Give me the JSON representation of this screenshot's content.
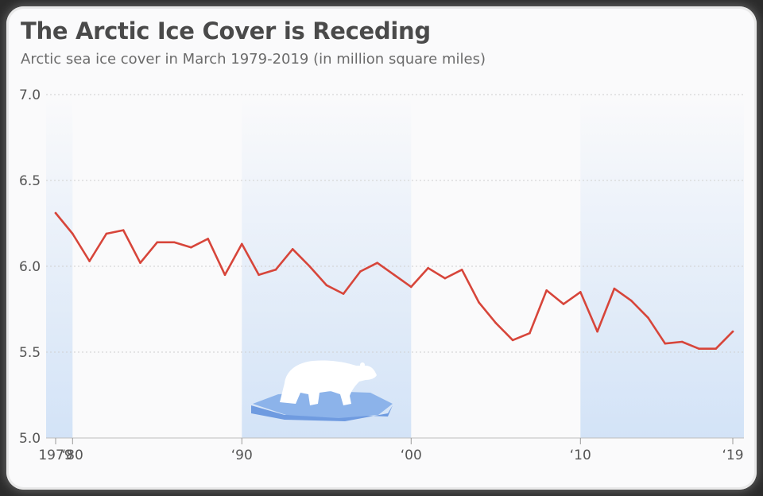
{
  "header": {
    "title": "The Arctic Ice Cover is Receding",
    "subtitle": "Arctic sea ice cover in March 1979-2019 (in million square miles)"
  },
  "colors": {
    "line": "#d7453a",
    "band": "#d3e3f7",
    "grid": "#cfcfcf",
    "ice_top": "#8cb3ea",
    "ice_side": "#6f9be0",
    "bear": "#ffffff"
  },
  "illustration": {
    "icon": "polar-bear-on-ice-floe-icon"
  },
  "chart_data": {
    "type": "line",
    "title": "The Arctic Ice Cover is Receding",
    "subtitle": "Arctic sea ice cover in March 1979-2019 (in million square miles)",
    "xlabel": "",
    "ylabel": "",
    "xlim": [
      1979,
      2019
    ],
    "ylim": [
      5.0,
      7.0
    ],
    "yticks": [
      5.0,
      5.5,
      6.0,
      6.5,
      7.0
    ],
    "ytick_labels": [
      "5.0",
      "5.5",
      "6.0",
      "6.5",
      "7.0"
    ],
    "xticks": [
      1979,
      1980,
      1990,
      2000,
      2010,
      2019
    ],
    "xtick_labels": [
      "1979",
      "‘80",
      "‘90",
      "‘00",
      "‘10",
      "‘19"
    ],
    "grid": true,
    "legend": "none",
    "shaded_decades": [
      [
        1979,
        1980
      ],
      [
        1990,
        2000
      ],
      [
        2010,
        2019
      ]
    ],
    "series": [
      {
        "x": [
          1979,
          1980,
          1981,
          1982,
          1983,
          1984,
          1985,
          1986,
          1987,
          1988,
          1989,
          1990,
          1991,
          1992,
          1993,
          1994,
          1995,
          1996,
          1997,
          1998,
          1999,
          2000,
          2001,
          2002,
          2003,
          2004,
          2005,
          2006,
          2007,
          2008,
          2009,
          2010,
          2011,
          2012,
          2013,
          2014,
          2015,
          2016,
          2017,
          2018,
          2019
        ],
        "values": [
          6.31,
          6.19,
          6.03,
          6.19,
          6.21,
          6.02,
          6.14,
          6.14,
          6.11,
          6.16,
          5.95,
          6.13,
          5.95,
          5.98,
          6.1,
          6.0,
          5.89,
          5.84,
          5.97,
          6.02,
          5.95,
          5.88,
          5.99,
          5.93,
          5.98,
          5.79,
          5.67,
          5.57,
          5.61,
          5.86,
          5.78,
          5.85,
          5.62,
          5.87,
          5.8,
          5.7,
          5.55,
          5.56,
          5.52,
          5.52,
          5.62
        ]
      }
    ]
  }
}
